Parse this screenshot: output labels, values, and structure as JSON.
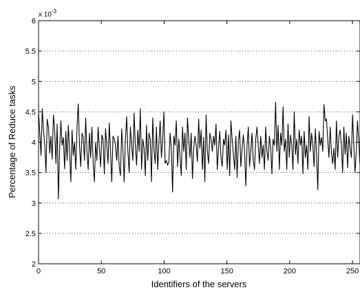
{
  "chart_data": {
    "type": "line",
    "xlabel": "Identifiers of the servers",
    "ylabel": "Percentage of Reduce tasks",
    "xlim": [
      0,
      256
    ],
    "ylim": [
      2,
      6
    ],
    "y_exponent_label": "x 10",
    "y_exponent_power": "-3",
    "x_ticks": [
      0,
      50,
      100,
      150,
      200,
      250
    ],
    "x_tick_labels": [
      "0",
      "50",
      "100",
      "150",
      "200",
      "250"
    ],
    "y_ticks": [
      2,
      2.5,
      3,
      3.5,
      4,
      4.5,
      5,
      5.5,
      6
    ],
    "y_tick_labels": [
      "2",
      "2.5",
      "3",
      "3.5",
      "4",
      "4.5",
      "5",
      "5.5",
      "6"
    ],
    "grid": "horizontal dotted",
    "line_color": "#000000",
    "series": [
      {
        "values": [
          4.5,
          4.15,
          3.78,
          4.55,
          4.2,
          3.95,
          3.5,
          4.38,
          4.25,
          3.82,
          4.1,
          3.72,
          4.45,
          4.2,
          3.65,
          4.3,
          3.07,
          3.9,
          4.35,
          3.95,
          4.08,
          3.56,
          4.18,
          3.7,
          4.28,
          3.85,
          3.35,
          4.2,
          3.78,
          4.0,
          3.55,
          4.25,
          4.63,
          3.95,
          3.6,
          4.15,
          4.08,
          3.7,
          4.4,
          3.85,
          3.55,
          4.15,
          3.75,
          4.25,
          3.65,
          3.35,
          4.0,
          3.7,
          4.25,
          3.9,
          3.6,
          4.12,
          4.05,
          3.48,
          4.22,
          3.95,
          3.65,
          4.32,
          3.85,
          3.35,
          4.1,
          4.05,
          3.95,
          3.7,
          4.1,
          3.6,
          3.45,
          4.22,
          3.88,
          3.35,
          4.05,
          4.42,
          3.85,
          3.5,
          4.25,
          3.95,
          3.7,
          4.48,
          3.95,
          3.62,
          4.2,
          3.85,
          4.55,
          3.55,
          4.05,
          3.9,
          3.45,
          4.28,
          3.7,
          4.15,
          4.05,
          3.35,
          4.4,
          3.88,
          3.65,
          4.25,
          3.55,
          4.0,
          4.35,
          3.75,
          4.05,
          4.5,
          3.65,
          3.7,
          3.62,
          3.68,
          4.15,
          3.9,
          3.18,
          4.1,
          3.95,
          4.35,
          3.6,
          4.05,
          3.75,
          3.45,
          4.25,
          3.85,
          4.15,
          3.55,
          4.4,
          4.05,
          3.75,
          4.15,
          3.4,
          3.9,
          4.1,
          3.95,
          3.68,
          4.38,
          3.9,
          4.2,
          3.55,
          4.08,
          3.35,
          4.45,
          3.85,
          3.65,
          4.15,
          4.05,
          3.85,
          4.1,
          3.95,
          4.3,
          3.55,
          3.9,
          4.18,
          3.75,
          3.6,
          4.05,
          3.95,
          4.2,
          3.55,
          4.12,
          3.45,
          4.35,
          4.05,
          3.8,
          3.55,
          4.1,
          3.42,
          4.0,
          4.2,
          3.6,
          3.9,
          4.12,
          3.85,
          3.28,
          3.95,
          4.25,
          3.6,
          3.85,
          4.15,
          3.7,
          3.55,
          4.05,
          4.25,
          3.95,
          3.65,
          4.1,
          3.75,
          3.95,
          3.55,
          4.25,
          3.85,
          3.7,
          4.1,
          3.92,
          3.48,
          4.05,
          3.95,
          4.66,
          3.85,
          4.28,
          3.55,
          4.15,
          3.95,
          4.58,
          3.85,
          4.05,
          3.55,
          4.3,
          3.75,
          4.12,
          3.95,
          3.55,
          4.5,
          3.8,
          4.05,
          3.65,
          4.2,
          3.95,
          4.1,
          3.48,
          4.18,
          3.75,
          3.95,
          3.55,
          4.42,
          3.85,
          4.15,
          3.95,
          3.6,
          4.22,
          3.8,
          3.22,
          4.18,
          3.95,
          4.08,
          3.85,
          4.62,
          4.35,
          4.38,
          4.05,
          3.75,
          4.25,
          3.82,
          3.65,
          3.9,
          3.55,
          4.35,
          3.75,
          4.1,
          4.2,
          3.95,
          3.5,
          4.25,
          3.8,
          4.15,
          3.58,
          4.1,
          3.9,
          3.75,
          4.45,
          3.95,
          3.5,
          3.85,
          4.35,
          4.02,
          3.62
        ]
      }
    ]
  }
}
